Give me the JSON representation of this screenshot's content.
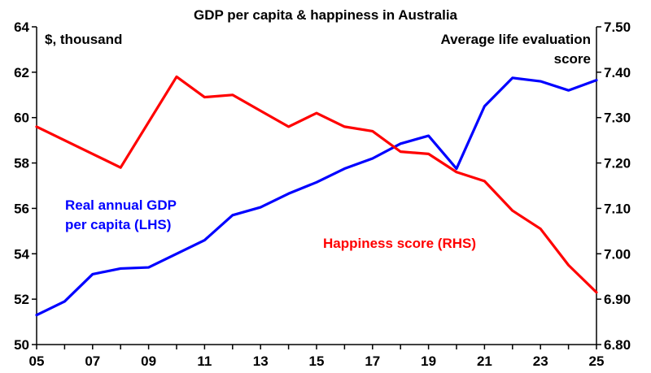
{
  "chart_data": {
    "type": "line",
    "title": "GDP per capita & happiness in Australia",
    "left_axis": {
      "unit_label": "$, thousand",
      "range": [
        50,
        64
      ],
      "ticks": [
        "50",
        "52",
        "54",
        "56",
        "58",
        "60",
        "62",
        "64"
      ]
    },
    "right_axis": {
      "unit_label_line1": "Average life evaluation",
      "unit_label_line2": "score",
      "range": [
        6.8,
        7.5
      ],
      "ticks": [
        "6.80",
        "6.90",
        "7.00",
        "7.10",
        "7.20",
        "7.30",
        "7.40",
        "7.50"
      ]
    },
    "x_ticks": [
      "05",
      "07",
      "09",
      "11",
      "13",
      "15",
      "17",
      "19",
      "21",
      "23",
      "25"
    ],
    "x": [
      2005,
      2006,
      2007,
      2008,
      2009,
      2010,
      2011,
      2012,
      2013,
      2014,
      2015,
      2016,
      2017,
      2018,
      2019,
      2020,
      2021,
      2022,
      2023,
      2024,
      2025
    ],
    "x_range": [
      2005,
      2025
    ],
    "grid": false,
    "series": [
      {
        "name_line1": "Real annual GDP",
        "name_line2": "per capita (LHS)",
        "axis": "left",
        "color": "#0000FF",
        "values": [
          51.3,
          51.9,
          53.1,
          53.35,
          53.4,
          54.0,
          54.6,
          55.7,
          56.05,
          56.65,
          57.15,
          57.75,
          58.2,
          58.85,
          59.2,
          57.75,
          60.5,
          61.75,
          61.6,
          61.2,
          61.65
        ]
      },
      {
        "name": "Happiness score (RHS)",
        "axis": "right",
        "color": "#FF0000",
        "values": [
          7.28,
          7.25,
          7.22,
          7.19,
          7.29,
          7.39,
          7.345,
          7.35,
          7.315,
          7.28,
          7.31,
          7.28,
          7.27,
          7.225,
          7.22,
          7.18,
          7.16,
          7.095,
          7.055,
          6.975,
          6.915
        ]
      }
    ]
  }
}
